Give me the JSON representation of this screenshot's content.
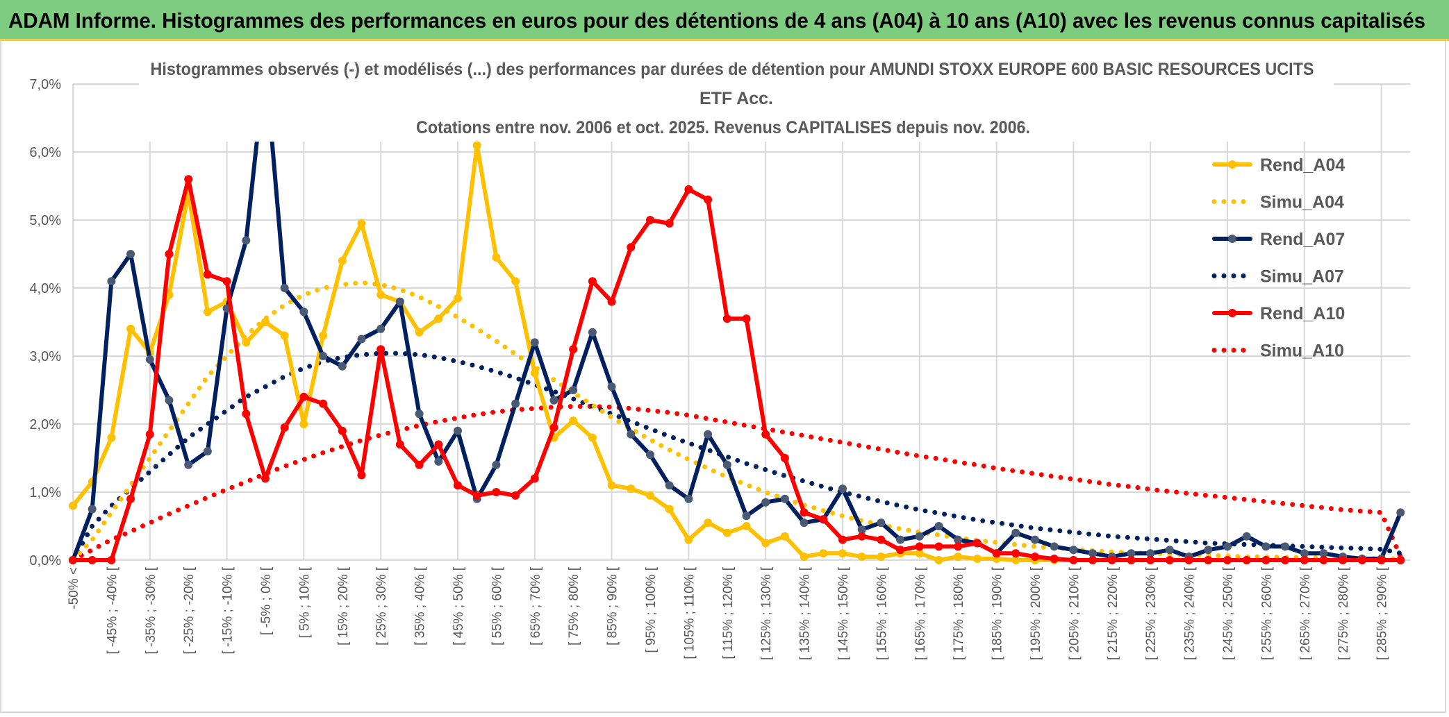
{
  "header": {
    "title": "ADAM Informe. Histogrammes des performances en euros pour des détentions de 4 ans (A04) à 10 ans (A10) avec les revenus connus capitalisés"
  },
  "colors": {
    "header_bg": "#7dcc7f",
    "a04": "#FFC000",
    "a07": "#002060",
    "a07_marker": "#4A5A75",
    "a10": "#FF0000",
    "grid": "#D9D9D9",
    "text": "#595959"
  },
  "chart_data": {
    "type": "line",
    "title": [
      "Histogrammes observés (-) et modélisés (...) des performances par durées de détention pour AMUNDI STOXX EUROPE 600 BASIC RESOURCES UCITS",
      "ETF Acc.",
      "Cotations entre nov. 2006 et oct. 2025. Revenus CAPITALISES depuis nov. 2006."
    ],
    "xlabel": "",
    "ylabel": "",
    "ylim": [
      0,
      7
    ],
    "yticks": [
      "0,0%",
      "1,0%",
      "2,0%",
      "3,0%",
      "4,0%",
      "5,0%",
      "6,0%",
      "7,0%"
    ],
    "category_count": 70,
    "xtick_labels": [
      "-50% <",
      "[ -45% ; -40% [",
      "[ -35% ; -30% [",
      "[ -25% ; -20% [",
      "[ -15% ; -10% [",
      "[ -5% ; 0% [",
      "[ 5% ; 10% [",
      "[ 15% ; 20% [",
      "[ 25% ; 30% [",
      "[ 35% ; 40% [",
      "[ 45% ; 50% [",
      "[ 55% ; 60% [",
      "[ 65% ; 70% [",
      "[ 75% ; 80% [",
      "[ 85% ; 90% [",
      "[ 95% ; 100% [",
      "[ 105% ; 110% [",
      "[ 115% ; 120% [",
      "[ 125% ; 130% [",
      "[ 135% ; 140% [",
      "[ 145% ; 150% [",
      "[ 155% ; 160% [",
      "[ 165% ; 170% [",
      "[ 175% ; 180% [",
      "[ 185% ; 190% [",
      "[ 195% ; 200% [",
      "[ 205% ; 210% [",
      "[ 215% ; 220% [",
      "[ 225% ; 230% [",
      "[ 235% ; 240% [",
      "[ 245% ; 250% [",
      "[ 255% ; 260% [",
      "[ 265% ; 270% [",
      "[ 275% ; 280% [",
      "[ 285% ; 290% ["
    ],
    "grid": true,
    "legend_position": "right",
    "series": [
      {
        "name": "Rend_A04",
        "style": "solid",
        "color": "#FFC000",
        "values": [
          0.8,
          1.15,
          1.8,
          3.4,
          3.05,
          3.9,
          5.4,
          3.65,
          3.8,
          3.2,
          3.5,
          3.3,
          2.0,
          3.3,
          4.4,
          4.95,
          3.9,
          3.8,
          3.35,
          3.55,
          3.85,
          6.1,
          4.45,
          4.1,
          2.75,
          1.8,
          2.05,
          1.8,
          1.1,
          1.05,
          0.95,
          0.75,
          0.3,
          0.55,
          0.4,
          0.5,
          0.25,
          0.35,
          0.05,
          0.1,
          0.1,
          0.05,
          0.05,
          0.1,
          0.1,
          0.0,
          0.05,
          0.02,
          0.02,
          0,
          0,
          0,
          0,
          0,
          0,
          0,
          0,
          0,
          0,
          0,
          0,
          0,
          0,
          0,
          0,
          0,
          0,
          0,
          0,
          0
        ]
      },
      {
        "name": "Simu_A04",
        "style": "dotted",
        "color": "#FFC000",
        "values": [
          0,
          0.3,
          0.7,
          1.1,
          1.5,
          1.9,
          2.3,
          2.7,
          3.0,
          3.3,
          3.55,
          3.75,
          3.9,
          4.0,
          4.05,
          4.08,
          4.05,
          3.98,
          3.87,
          3.73,
          3.57,
          3.4,
          3.22,
          3.03,
          2.84,
          2.65,
          2.46,
          2.28,
          2.1,
          1.93,
          1.77,
          1.62,
          1.48,
          1.35,
          1.22,
          1.11,
          1.0,
          0.9,
          0.81,
          0.73,
          0.65,
          0.58,
          0.52,
          0.46,
          0.41,
          0.37,
          0.33,
          0.29,
          0.26,
          0.23,
          0.2,
          0.18,
          0.16,
          0.14,
          0.12,
          0.11,
          0.1,
          0.09,
          0.08,
          0.07,
          0.06,
          0.05,
          0.05,
          0.04,
          0.04,
          0.03,
          0.03,
          0.03,
          0.02,
          0.02
        ]
      },
      {
        "name": "Rend_A07",
        "style": "solid",
        "color": "#002060",
        "values": [
          0,
          0.75,
          4.1,
          4.5,
          2.95,
          2.35,
          1.4,
          1.6,
          3.7,
          4.7,
          7.3,
          4.0,
          3.65,
          3.0,
          2.85,
          3.25,
          3.4,
          3.8,
          2.15,
          1.45,
          1.9,
          0.9,
          1.4,
          2.3,
          3.2,
          2.35,
          2.5,
          3.35,
          2.55,
          1.85,
          1.55,
          1.1,
          0.9,
          1.85,
          1.4,
          0.65,
          0.85,
          0.9,
          0.55,
          0.6,
          1.05,
          0.45,
          0.55,
          0.3,
          0.35,
          0.5,
          0.3,
          0.25,
          0.1,
          0.4,
          0.3,
          0.2,
          0.15,
          0.1,
          0.05,
          0.1,
          0.1,
          0.15,
          0.05,
          0.15,
          0.2,
          0.35,
          0.2,
          0.2,
          0.1,
          0.1,
          0.05,
          0.02,
          0.02,
          0.7
        ]
      },
      {
        "name": "Simu_A07",
        "style": "dotted",
        "color": "#002060",
        "values": [
          0,
          0.5,
          0.8,
          1.05,
          1.3,
          1.55,
          1.8,
          2.0,
          2.2,
          2.4,
          2.55,
          2.7,
          2.82,
          2.92,
          2.98,
          3.02,
          3.04,
          3.04,
          3.02,
          2.98,
          2.92,
          2.85,
          2.77,
          2.68,
          2.58,
          2.48,
          2.37,
          2.26,
          2.15,
          2.04,
          1.93,
          1.82,
          1.72,
          1.62,
          1.52,
          1.42,
          1.33,
          1.24,
          1.16,
          1.08,
          1.0,
          0.93,
          0.86,
          0.8,
          0.74,
          0.69,
          0.64,
          0.59,
          0.55,
          0.51,
          0.47,
          0.44,
          0.41,
          0.38,
          0.35,
          0.33,
          0.31,
          0.29,
          0.27,
          0.25,
          0.24,
          0.23,
          0.22,
          0.21,
          0.2,
          0.19,
          0.18,
          0.17,
          0.16,
          0.1
        ]
      },
      {
        "name": "Rend_A10",
        "style": "solid",
        "color": "#FF0000",
        "values": [
          0,
          0,
          0,
          0.9,
          1.85,
          4.5,
          5.6,
          4.2,
          4.1,
          2.15,
          1.2,
          1.95,
          2.4,
          2.3,
          1.9,
          1.25,
          3.1,
          1.7,
          1.4,
          1.7,
          1.1,
          0.95,
          1.0,
          0.95,
          1.2,
          1.95,
          3.1,
          4.1,
          3.8,
          4.6,
          5.0,
          4.95,
          5.45,
          5.3,
          3.55,
          3.55,
          1.85,
          1.5,
          0.7,
          0.6,
          0.3,
          0.35,
          0.3,
          0.15,
          0.2,
          0.2,
          0.2,
          0.25,
          0.1,
          0.1,
          0.05,
          0.02,
          0,
          0,
          0,
          0,
          0,
          0,
          0,
          0,
          0,
          0,
          0,
          0,
          0,
          0,
          0,
          0,
          0,
          0
        ]
      },
      {
        "name": "Simu_A10",
        "style": "dotted",
        "color": "#FF0000",
        "values": [
          0,
          0.15,
          0.3,
          0.42,
          0.55,
          0.68,
          0.8,
          0.92,
          1.04,
          1.15,
          1.27,
          1.38,
          1.48,
          1.58,
          1.67,
          1.76,
          1.84,
          1.91,
          1.98,
          2.04,
          2.09,
          2.14,
          2.18,
          2.21,
          2.23,
          2.25,
          2.26,
          2.26,
          2.25,
          2.23,
          2.2,
          2.17,
          2.13,
          2.08,
          2.03,
          1.98,
          1.93,
          1.88,
          1.83,
          1.78,
          1.73,
          1.68,
          1.63,
          1.58,
          1.53,
          1.49,
          1.44,
          1.4,
          1.35,
          1.31,
          1.27,
          1.23,
          1.19,
          1.15,
          1.11,
          1.08,
          1.04,
          1.01,
          0.98,
          0.95,
          0.92,
          0.89,
          0.86,
          0.83,
          0.8,
          0.77,
          0.74,
          0.72,
          0.7,
          0.05
        ]
      }
    ]
  }
}
